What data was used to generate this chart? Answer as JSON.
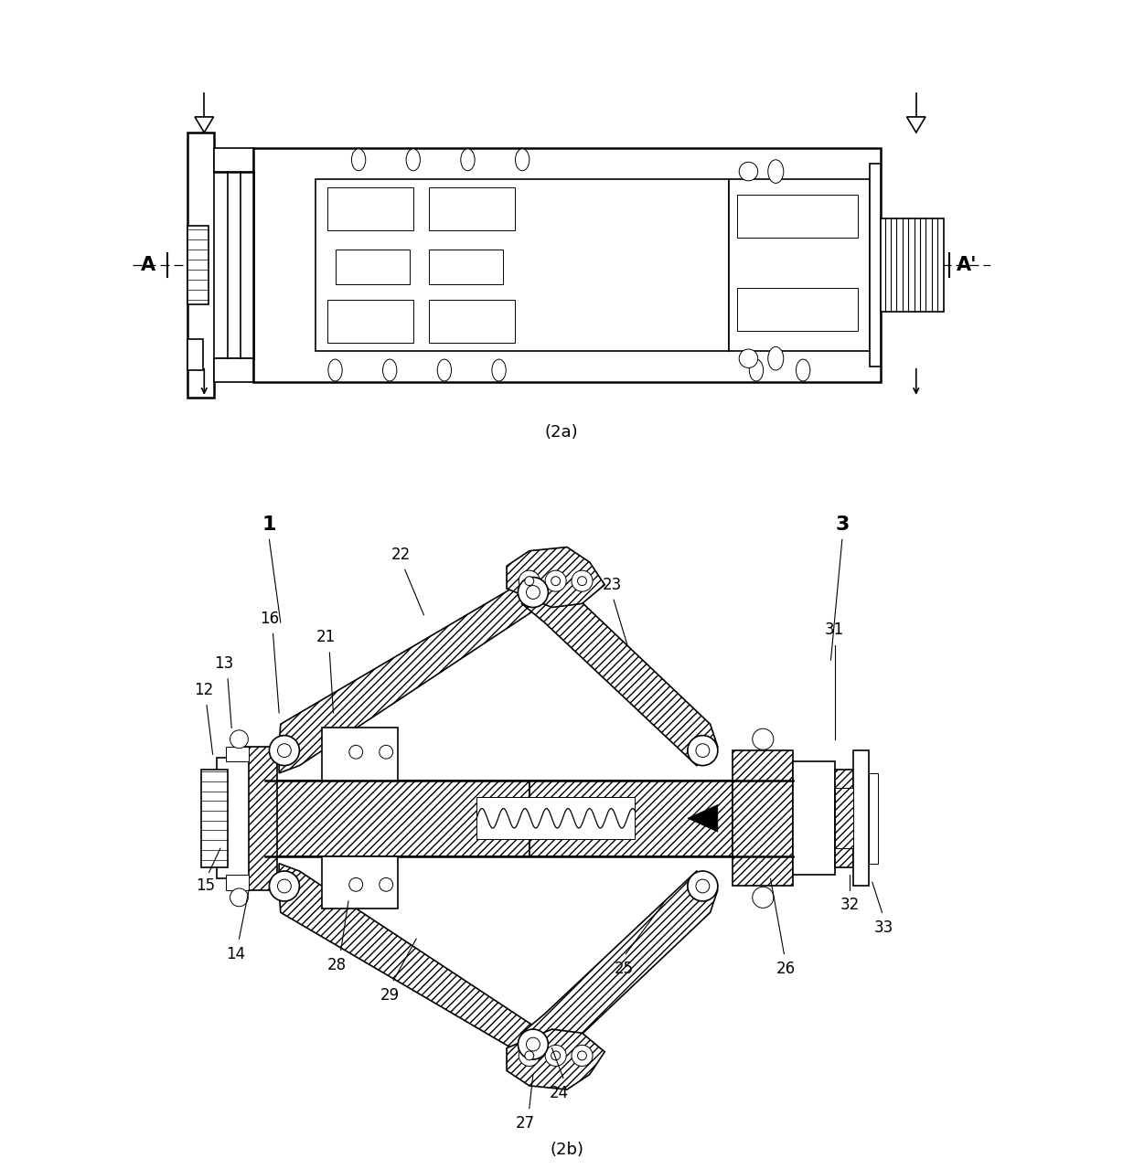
{
  "bg_color": "#ffffff",
  "line_color": "#000000",
  "fig_width": 12.4,
  "fig_height": 12.79,
  "caption_2a": "(2a)",
  "caption_2b": "(2b)"
}
